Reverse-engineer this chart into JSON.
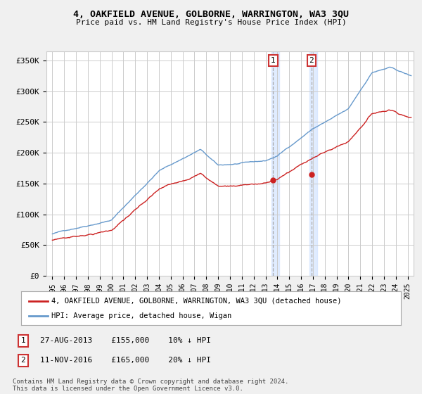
{
  "title": "4, OAKFIELD AVENUE, GOLBORNE, WARRINGTON, WA3 3QU",
  "subtitle": "Price paid vs. HM Land Registry's House Price Index (HPI)",
  "ylabel_ticks": [
    "£0",
    "£50K",
    "£100K",
    "£150K",
    "£200K",
    "£250K",
    "£300K",
    "£350K"
  ],
  "ytick_values": [
    0,
    50000,
    100000,
    150000,
    200000,
    250000,
    300000,
    350000
  ],
  "ylim": [
    0,
    365000
  ],
  "xlim_start": 1994.5,
  "xlim_end": 2025.5,
  "transaction1": {
    "date_x": 2013.65,
    "price": 155000,
    "label": "1",
    "pct": "10%",
    "date_str": "27-AUG-2013"
  },
  "transaction2": {
    "date_x": 2016.87,
    "price": 165000,
    "label": "2",
    "pct": "20%",
    "date_str": "11-NOV-2016"
  },
  "line1_label": "4, OAKFIELD AVENUE, GOLBORNE, WARRINGTON, WA3 3QU (detached house)",
  "line2_label": "HPI: Average price, detached house, Wigan",
  "footnote": "Contains HM Land Registry data © Crown copyright and database right 2024.\nThis data is licensed under the Open Government Licence v3.0.",
  "bg_color": "#f0f0f0",
  "plot_bg_color": "#ffffff",
  "hpi_color": "#6699cc",
  "price_color": "#cc2222",
  "grid_color": "#cccccc",
  "shade_color": "#cce0ff"
}
